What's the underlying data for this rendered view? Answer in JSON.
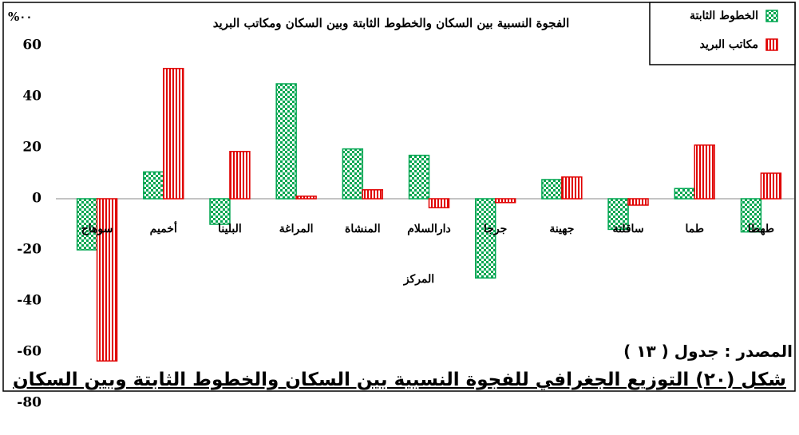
{
  "chart_data": {
    "type": "bar",
    "title": "الفجوة النسبية بين السكان والخطوط الثابتة وبين السكان ومكاتب البريد",
    "y_unit_label": "%٠٠",
    "x_label": "المركز",
    "categories": [
      "سوهاج",
      "أخميم",
      "البلينا",
      "المراغة",
      "المنشاة",
      "دارالسلام",
      "جرجا",
      "جهينة",
      "ساقلتة",
      "طما",
      "طهطا"
    ],
    "series": [
      {
        "name": "الخطوط الثابتة",
        "color": "#00a651",
        "values": [
          -20,
          10.5,
          -10,
          45,
          19.5,
          17,
          -31,
          7.5,
          -12,
          4,
          -13
        ]
      },
      {
        "name": "مكاتب البريد",
        "color": "#e00000",
        "values": [
          -63.5,
          51,
          18.5,
          1,
          3.5,
          -3.5,
          -1.5,
          8.5,
          -2.5,
          21,
          10
        ]
      }
    ],
    "ylim": [
      -80,
      60
    ],
    "yticks": [
      -80,
      -60,
      -40,
      -20,
      0,
      20,
      40,
      60
    ],
    "grid": false,
    "legend": "top-right",
    "source": "المصدر : جدول ( ١٣ )",
    "caption": "شكل (٢٠) التوزيع الجغرافي للفجوة النسبية بين السكان والخطوط الثابتة وبين السكان"
  }
}
